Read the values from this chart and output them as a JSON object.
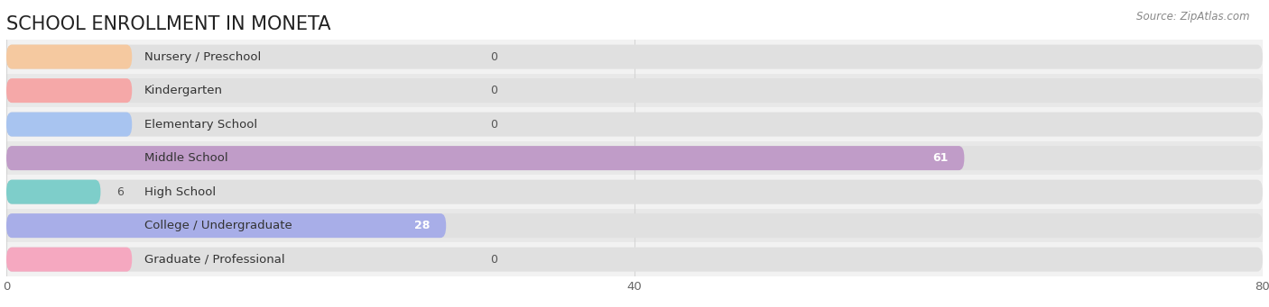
{
  "title": "SCHOOL ENROLLMENT IN MONETA",
  "source": "Source: ZipAtlas.com",
  "categories": [
    "Nursery / Preschool",
    "Kindergarten",
    "Elementary School",
    "Middle School",
    "High School",
    "College / Undergraduate",
    "Graduate / Professional"
  ],
  "values": [
    0,
    0,
    0,
    61,
    6,
    28,
    0
  ],
  "bar_colors": [
    "#f5c9a0",
    "#f5a8a8",
    "#a8c4f0",
    "#c09cc8",
    "#7ececa",
    "#a8aee8",
    "#f5a8c0"
  ],
  "row_bg_colors": [
    "#f2f2f2",
    "#e8e8e8"
  ],
  "bar_bg_color": "#e0e0e0",
  "xlim_max": 80,
  "xticks": [
    0,
    40,
    80
  ],
  "title_fontsize": 15,
  "label_fontsize": 9.5,
  "value_fontsize": 9,
  "source_fontsize": 8.5,
  "background_color": "#ffffff",
  "bar_height": 0.72,
  "grid_color": "#d0d0d0",
  "min_bar_width": 8
}
